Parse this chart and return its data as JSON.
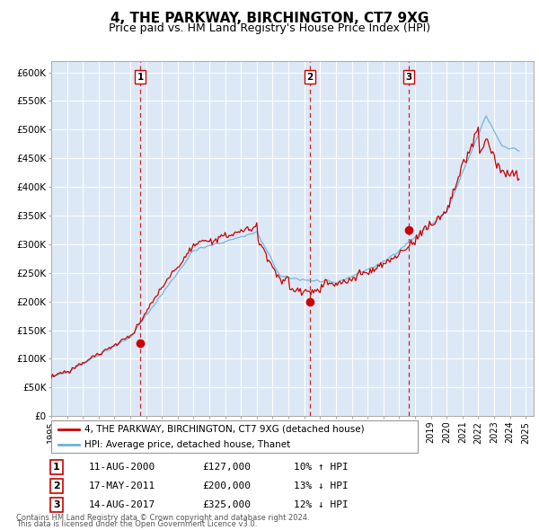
{
  "title": "4, THE PARKWAY, BIRCHINGTON, CT7 9XG",
  "subtitle": "Price paid vs. HM Land Registry's House Price Index (HPI)",
  "legend_line1": "4, THE PARKWAY, BIRCHINGTON, CT7 9XG (detached house)",
  "legend_line2": "HPI: Average price, detached house, Thanet",
  "footer1": "Contains HM Land Registry data © Crown copyright and database right 2024.",
  "footer2": "This data is licensed under the Open Government Licence v3.0.",
  "transactions": [
    {
      "label": "1",
      "date": "11-AUG-2000",
      "price": "£127,000",
      "hpi": "10% ↑ HPI",
      "year": 2000.62
    },
    {
      "label": "2",
      "date": "17-MAY-2011",
      "price": "£200,000",
      "hpi": "13% ↓ HPI",
      "year": 2011.37
    },
    {
      "label": "3",
      "date": "14-AUG-2017",
      "price": "£325,000",
      "hpi": "12% ↓ HPI",
      "year": 2017.62
    }
  ],
  "transaction_marker_prices": [
    127000,
    200000,
    325000
  ],
  "ylim": [
    0,
    620000
  ],
  "yticks": [
    0,
    50000,
    100000,
    150000,
    200000,
    250000,
    300000,
    350000,
    400000,
    450000,
    500000,
    550000,
    600000
  ],
  "ytick_labels": [
    "£0",
    "£50K",
    "£100K",
    "£150K",
    "£200K",
    "£250K",
    "£300K",
    "£350K",
    "£400K",
    "£450K",
    "£500K",
    "£550K",
    "£600K"
  ],
  "xlim_start": 1995.0,
  "xlim_end": 2025.5,
  "hpi_color": "#6ab0de",
  "price_color": "#cc0000",
  "marker_color": "#cc0000",
  "vline_color": "#cc0000",
  "background_color": "#dce8f5",
  "grid_color": "#ffffff",
  "title_fontsize": 11,
  "subtitle_fontsize": 9
}
